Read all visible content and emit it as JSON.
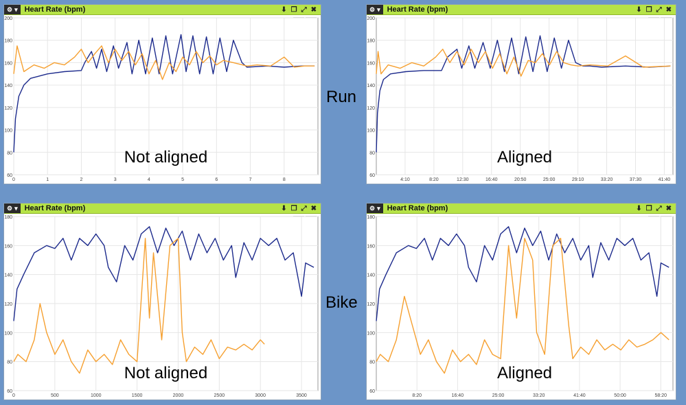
{
  "side_labels": {
    "run": "Run",
    "bike": "Bike"
  },
  "icons": {
    "menu": "gear-icon",
    "dropdown": "caret-down-icon",
    "download": "download-icon",
    "popout": "popout-icon",
    "expand": "expand-icon",
    "close": "close-icon"
  },
  "colors": {
    "background": "#6c95c8",
    "titlebar": "#b6e347",
    "series_hr": "#1c2a8c",
    "series_other": "#f6a030"
  },
  "zoom": {
    "minus": "-",
    "plus": "+"
  },
  "panels": [
    {
      "title": "Heart Rate (bpm)",
      "annotation": "Not aligned",
      "chart_data": {
        "type": "line",
        "xlim": [
          0,
          9
        ],
        "ylim": [
          60,
          200
        ],
        "xticks": [
          "0",
          "1",
          "2",
          "3",
          "4",
          "5",
          "6",
          "7",
          "8"
        ],
        "yticks": [
          "60",
          "80",
          "100",
          "120",
          "140",
          "160",
          "180",
          "200"
        ],
        "series": [
          {
            "color": "#1c2a8c",
            "x": [
              0,
              0.05,
              0.15,
              0.3,
              0.5,
              1.0,
              1.5,
              2.0,
              2.1,
              2.3,
              2.45,
              2.6,
              2.75,
              2.95,
              3.1,
              3.35,
              3.5,
              3.7,
              3.9,
              4.1,
              4.3,
              4.5,
              4.7,
              4.95,
              5.1,
              5.3,
              5.5,
              5.7,
              5.9,
              6.1,
              6.3,
              6.5,
              6.75,
              6.9,
              7.5,
              8.0,
              8.5,
              8.9
            ],
            "y": [
              80,
              110,
              130,
              140,
              146,
              150,
              152,
              153,
              160,
              170,
              155,
              172,
              152,
              175,
              155,
              178,
              150,
              180,
              150,
              182,
              150,
              184,
              150,
              185,
              152,
              184,
              150,
              183,
              150,
              182,
              152,
              180,
              160,
              156,
              157,
              156,
              157,
              157
            ]
          },
          {
            "color": "#f6a030",
            "x": [
              0,
              0.1,
              0.3,
              0.6,
              0.9,
              1.2,
              1.5,
              1.8,
              2.0,
              2.2,
              2.4,
              2.6,
              2.8,
              3.0,
              3.2,
              3.4,
              3.6,
              3.8,
              4.0,
              4.2,
              4.4,
              4.6,
              4.8,
              5.0,
              5.2,
              5.4,
              5.6,
              5.8,
              6.0,
              6.2,
              6.5,
              6.9,
              7.2,
              7.6,
              8.0,
              8.3,
              8.6,
              8.9
            ],
            "y": [
              150,
              175,
              152,
              158,
              155,
              160,
              158,
              165,
              172,
              160,
              168,
              175,
              160,
              172,
              162,
              170,
              158,
              168,
              150,
              162,
              145,
              160,
              152,
              165,
              158,
              170,
              160,
              166,
              158,
              162,
              160,
              157,
              158,
              157,
              165,
              156,
              157,
              157
            ]
          }
        ]
      }
    },
    {
      "title": "Heart Rate (bpm)",
      "annotation": "Aligned",
      "chart_data": {
        "type": "line",
        "xlim": [
          0,
          2500
        ],
        "ylim": [
          60,
          200
        ],
        "xticks": [
          "4:10",
          "8:20",
          "12:30",
          "16:40",
          "20:50",
          "25:00",
          "29:10",
          "33:20",
          "37:30",
          "41:40"
        ],
        "yticks": [
          "60",
          "80",
          "100",
          "120",
          "140",
          "160",
          "180",
          "200"
        ],
        "series": [
          {
            "color": "#1c2a8c",
            "x": [
              0,
              10,
              30,
              60,
              120,
              250,
              400,
              550,
              600,
              680,
              720,
              780,
              830,
              900,
              960,
              1020,
              1080,
              1140,
              1200,
              1260,
              1320,
              1380,
              1440,
              1500,
              1560,
              1620,
              1680,
              1740,
              1800,
              1900,
              2100,
              2300,
              2480
            ],
            "y": [
              80,
              115,
              135,
              145,
              150,
              152,
              153,
              153,
              165,
              172,
              155,
              175,
              155,
              178,
              155,
              180,
              152,
              182,
              150,
              183,
              152,
              184,
              152,
              182,
              155,
              180,
              160,
              157,
              157,
              156,
              157,
              156,
              157
            ]
          },
          {
            "color": "#f6a030",
            "x": [
              0,
              15,
              40,
              100,
              200,
              300,
              400,
              500,
              560,
              620,
              680,
              740,
              800,
              860,
              920,
              980,
              1040,
              1100,
              1160,
              1220,
              1280,
              1340,
              1400,
              1460,
              1520,
              1580,
              1640,
              1700,
              1800,
              1950,
              2100,
              2250,
              2480
            ],
            "y": [
              150,
              170,
              150,
              158,
              155,
              160,
              157,
              165,
              172,
              160,
              170,
              158,
              172,
              160,
              170,
              155,
              168,
              150,
              165,
              148,
              162,
              160,
              168,
              158,
              170,
              160,
              158,
              157,
              158,
              157,
              166,
              156,
              157
            ]
          }
        ]
      }
    },
    {
      "title": "Heart Rate (bpm)",
      "annotation": "Not aligned",
      "chart_data": {
        "type": "line",
        "xlim": [
          0,
          3700
        ],
        "ylim": [
          60,
          180
        ],
        "xticks": [
          "0",
          "500",
          "1000",
          "1500",
          "2000",
          "2500",
          "3000",
          "3500"
        ],
        "yticks": [
          "60",
          "80",
          "100",
          "120",
          "140",
          "160",
          "180"
        ],
        "series": [
          {
            "color": "#1c2a8c",
            "x": [
              0,
              40,
              120,
              250,
              400,
              500,
              600,
              700,
              800,
              900,
              1000,
              1100,
              1150,
              1250,
              1350,
              1450,
              1550,
              1650,
              1750,
              1850,
              1950,
              2050,
              2150,
              2250,
              2350,
              2450,
              2550,
              2650,
              2700,
              2800,
              2900,
              3000,
              3100,
              3200,
              3300,
              3400,
              3500,
              3550,
              3650
            ],
            "y": [
              108,
              130,
              140,
              155,
              160,
              158,
              165,
              150,
              165,
              160,
              168,
              160,
              145,
              135,
              160,
              150,
              168,
              173,
              155,
              172,
              160,
              170,
              150,
              168,
              155,
              165,
              150,
              160,
              138,
              162,
              150,
              165,
              160,
              165,
              150,
              155,
              125,
              148,
              145
            ]
          },
          {
            "color": "#f6a030",
            "x": [
              0,
              50,
              150,
              250,
              320,
              400,
              500,
              600,
              700,
              800,
              900,
              1000,
              1100,
              1200,
              1300,
              1400,
              1500,
              1600,
              1650,
              1700,
              1800,
              1900,
              2000,
              2050,
              2100,
              2200,
              2300,
              2400,
              2500,
              2600,
              2700,
              2800,
              2900,
              3000,
              3050
            ],
            "y": [
              80,
              85,
              80,
              95,
              120,
              100,
              85,
              95,
              80,
              72,
              88,
              80,
              85,
              78,
              95,
              85,
              80,
              165,
              110,
              155,
              95,
              160,
              165,
              100,
              80,
              90,
              85,
              95,
              82,
              90,
              88,
              92,
              88,
              95,
              92
            ]
          }
        ]
      }
    },
    {
      "title": "Heart Rate (bpm)",
      "annotation": "Aligned",
      "chart_data": {
        "type": "line",
        "xlim": [
          0,
          3700
        ],
        "ylim": [
          60,
          180
        ],
        "xticks": [
          "8:20",
          "16:40",
          "25:00",
          "33:20",
          "41:40",
          "50:00",
          "58:20"
        ],
        "yticks": [
          "60",
          "80",
          "100",
          "120",
          "140",
          "160",
          "180"
        ],
        "series": [
          {
            "color": "#1c2a8c",
            "x": [
              0,
              40,
              120,
              250,
              400,
              500,
              600,
              700,
              800,
              900,
              1000,
              1100,
              1150,
              1250,
              1350,
              1450,
              1550,
              1650,
              1750,
              1850,
              1950,
              2050,
              2150,
              2250,
              2350,
              2450,
              2550,
              2650,
              2700,
              2800,
              2900,
              3000,
              3100,
              3200,
              3300,
              3400,
              3500,
              3550,
              3650
            ],
            "y": [
              108,
              130,
              140,
              155,
              160,
              158,
              165,
              150,
              165,
              160,
              168,
              160,
              145,
              135,
              160,
              150,
              168,
              173,
              155,
              172,
              160,
              170,
              150,
              168,
              155,
              165,
              150,
              160,
              138,
              162,
              150,
              165,
              160,
              165,
              150,
              155,
              125,
              148,
              145
            ]
          },
          {
            "color": "#f6a030",
            "x": [
              0,
              50,
              150,
              250,
              350,
              450,
              550,
              650,
              750,
              850,
              950,
              1050,
              1150,
              1250,
              1350,
              1450,
              1550,
              1650,
              1750,
              1850,
              1950,
              2000,
              2100,
              2200,
              2300,
              2400,
              2450,
              2550,
              2650,
              2750,
              2850,
              2950,
              3050,
              3150,
              3250,
              3350,
              3450,
              3550,
              3650
            ],
            "y": [
              80,
              85,
              80,
              95,
              125,
              105,
              85,
              95,
              80,
              72,
              88,
              80,
              85,
              78,
              95,
              85,
              82,
              160,
              110,
              165,
              150,
              100,
              85,
              160,
              165,
              105,
              82,
              90,
              85,
              95,
              88,
              92,
              88,
              95,
              90,
              92,
              95,
              100,
              95
            ]
          }
        ]
      }
    }
  ]
}
